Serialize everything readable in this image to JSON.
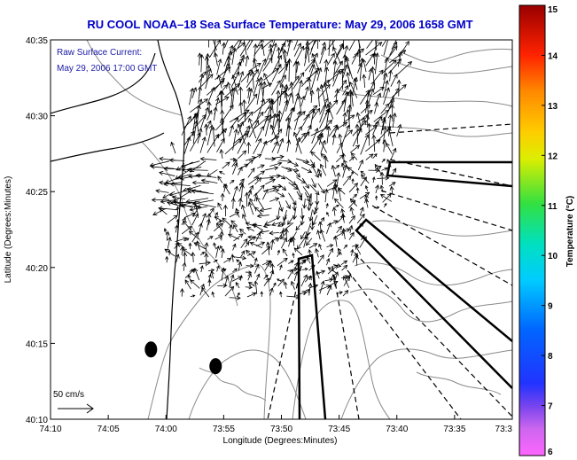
{
  "chart_data": {
    "type": "map",
    "title": "RU COOL  NOAA–18  Sea Surface Temperature:  May 29, 2006 1658 GMT",
    "xlabel": "Longitude (Degrees:Minutes)",
    "ylabel": "Latitude (Degrees:Minutes)",
    "x_ticks": [
      "74:10",
      "74:05",
      "74:00",
      "73:55",
      "73:50",
      "73:45",
      "73:40",
      "73:35",
      "73:3"
    ],
    "y_ticks": [
      "40:10",
      "40:15",
      "40:20",
      "40:25",
      "40:30",
      "40:35"
    ],
    "xlim_minutes_west_of_73": [
      70,
      30
    ],
    "ylim_minutes_north_of_40": [
      10,
      35
    ],
    "annotations": [
      "Raw Surface Current:",
      "May 29, 2006 17:00 GMT"
    ],
    "scale_label": "50 cm/s",
    "colorbar": {
      "label": "Temperature (°C)",
      "ticks": [
        "6",
        "7",
        "8",
        "9",
        "10",
        "11",
        "12",
        "13",
        "14",
        "15"
      ],
      "range": [
        6,
        15
      ]
    },
    "sst_field": "no data (white)",
    "markers": [
      {
        "lon_min": 61.3,
        "lat_min": 14.6
      },
      {
        "lon_min": 55.7,
        "lat_min": 13.5
      }
    ],
    "colors": {
      "title": "#0000c8",
      "annotation": "#1a1aa8",
      "vectors": "#000000",
      "coastline": "#000000",
      "bathymetry": "#808080"
    }
  }
}
